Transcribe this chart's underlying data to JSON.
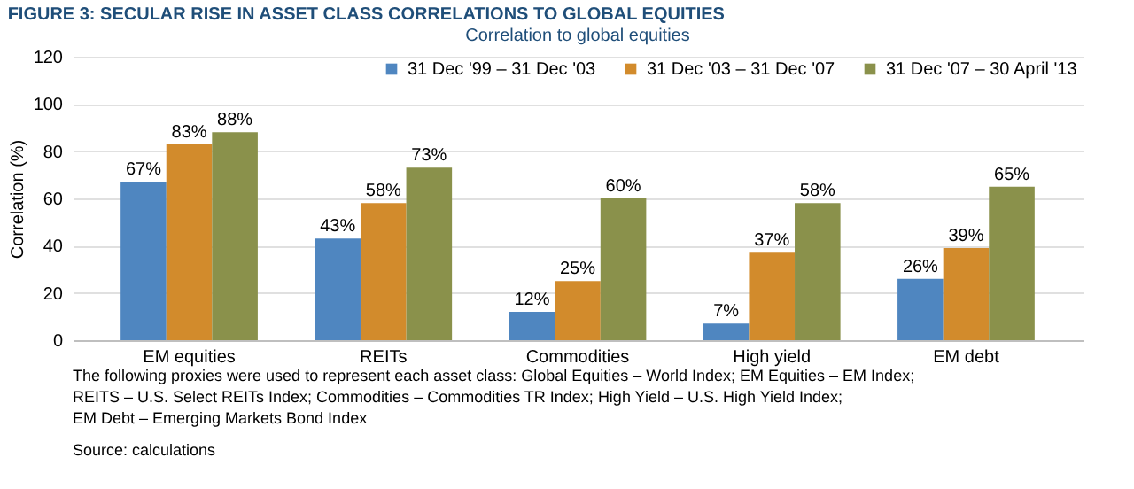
{
  "chart_data": {
    "type": "bar",
    "title": "FIGURE 3: SECULAR RISE IN ASSET CLASS CORRELATIONS TO GLOBAL EQUITIES",
    "subtitle": "Correlation to global equities",
    "ylabel": "Correlation (%)",
    "categories": [
      "EM equities",
      "REITs",
      "Commodities",
      "High yield",
      "EM debt"
    ],
    "series": [
      {
        "name": "31 Dec '99 – 31 Dec '03",
        "color": "#4f86c0",
        "values": [
          67,
          43,
          12,
          7,
          26
        ],
        "value_labels": [
          "67%",
          "43%",
          "12%",
          "7%",
          "26%"
        ]
      },
      {
        "name": "31 Dec '03 – 31 Dec '07",
        "color": "#d28b2c",
        "values": [
          83,
          58,
          25,
          37,
          39
        ],
        "value_labels": [
          "83%",
          "58%",
          "25%",
          "37%",
          "39%"
        ]
      },
      {
        "name": "31 Dec '07 – 30 April '13",
        "color": "#8a914b",
        "values": [
          88,
          73,
          60,
          58,
          65
        ],
        "value_labels": [
          "88%",
          "73%",
          "60%",
          "58%",
          "65%"
        ]
      }
    ],
    "ylim": [
      0,
      120
    ],
    "yticks": [
      0,
      20,
      40,
      60,
      80,
      100,
      120
    ],
    "grid": "y",
    "legend": "top right",
    "annotations": [
      "The following proxies were used to represent each asset class: Global Equities – World Index; EM Equities – EM Index;",
      "REITS – U.S. Select REITs Index; Commodities – Commodities TR Index; High Yield – U.S. High Yield Index;",
      "EM Debt – Emerging Markets Bond Index",
      "Source: calculations"
    ]
  }
}
